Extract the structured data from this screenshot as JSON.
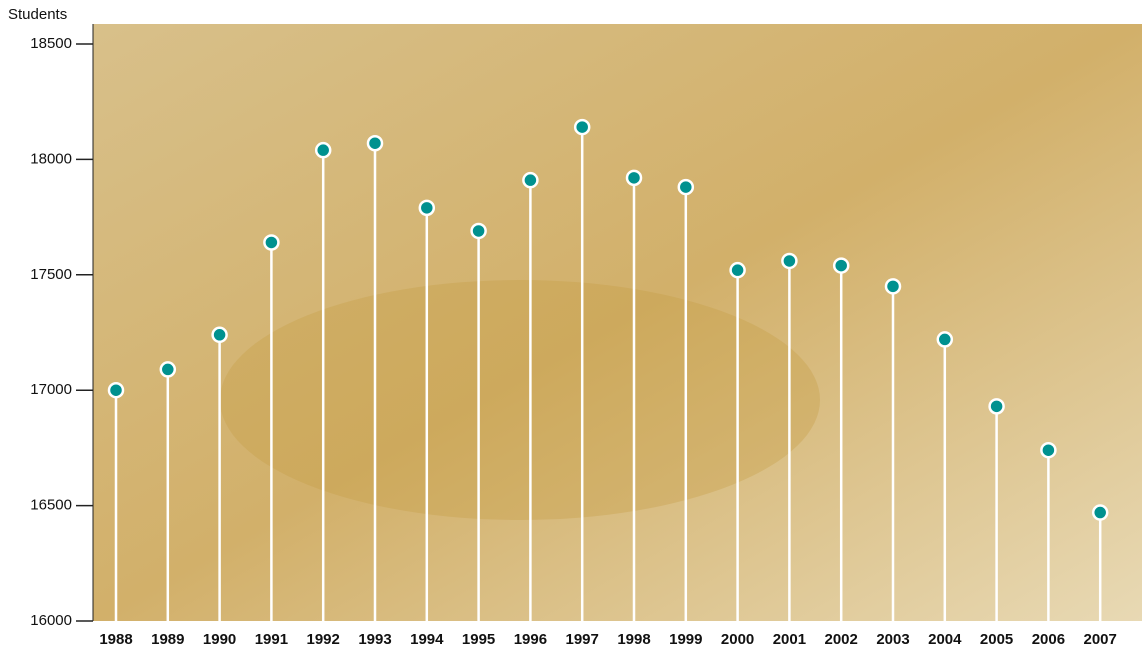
{
  "chart_data": {
    "type": "lollipop",
    "y_label": "Students",
    "categories": [
      "1988",
      "1989",
      "1990",
      "1991",
      "1992",
      "1993",
      "1994",
      "1995",
      "1996",
      "1997",
      "1998",
      "1999",
      "2000",
      "2001",
      "2002",
      "2003",
      "2004",
      "2005",
      "2006",
      "2007"
    ],
    "values": [
      17000,
      17090,
      17240,
      17640,
      18040,
      18070,
      17790,
      17690,
      17910,
      18140,
      17920,
      17880,
      17520,
      17560,
      17540,
      17450,
      17220,
      16930,
      16740,
      16470
    ],
    "color": "#00918f",
    "ylim": [
      16000,
      18500
    ],
    "yticks": [
      16000,
      16500,
      17000,
      17500,
      18000,
      18500
    ]
  }
}
